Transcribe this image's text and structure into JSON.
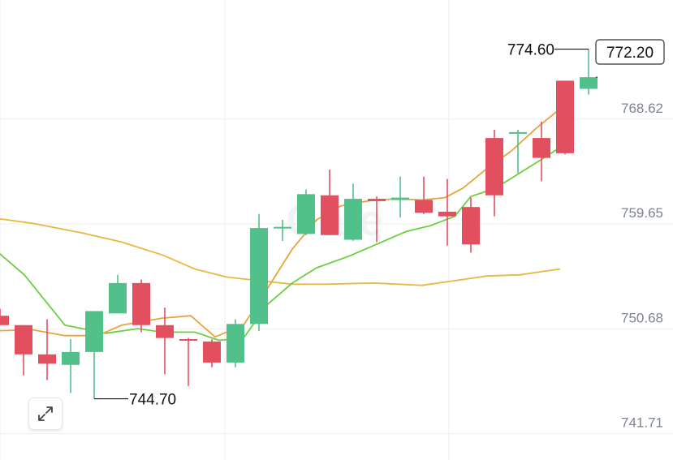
{
  "chart_data": {
    "type": "candlestick",
    "y_ticks": [
      "768.62",
      "759.65",
      "750.68",
      "741.71"
    ],
    "y_tick_values": [
      768.62,
      759.65,
      750.68,
      741.71
    ],
    "ylim": [
      740.3,
      778.8
    ],
    "grid": true,
    "colors": {
      "up": "#52c08a",
      "down": "#e2505f",
      "ma_orange": "#e8a33b",
      "ma_green": "#6bcf3f",
      "ma_yellow": "#e9b740",
      "grid": "#eeeeee"
    },
    "candles": [
      {
        "o": 751.8,
        "h": 752.4,
        "l": 751.0,
        "c": 751.0
      },
      {
        "o": 751.0,
        "h": 751.0,
        "l": 746.7,
        "c": 748.5
      },
      {
        "o": 748.5,
        "h": 751.5,
        "l": 746.3,
        "c": 747.7
      },
      {
        "o": 747.6,
        "h": 749.8,
        "l": 745.2,
        "c": 748.7
      },
      {
        "o": 748.7,
        "h": 752.2,
        "l": 744.7,
        "c": 752.2
      },
      {
        "o": 752.0,
        "h": 755.3,
        "l": 752.0,
        "c": 754.6
      },
      {
        "o": 754.6,
        "h": 754.9,
        "l": 750.4,
        "c": 751.0
      },
      {
        "o": 751.0,
        "h": 752.5,
        "l": 746.8,
        "c": 749.9
      },
      {
        "o": 749.8,
        "h": 749.9,
        "l": 745.8,
        "c": 749.7
      },
      {
        "o": 749.6,
        "h": 749.8,
        "l": 747.4,
        "c": 747.8
      },
      {
        "o": 747.8,
        "h": 751.5,
        "l": 747.4,
        "c": 751.1
      },
      {
        "o": 751.1,
        "h": 760.5,
        "l": 750.5,
        "c": 759.3
      },
      {
        "o": 759.3,
        "h": 760.0,
        "l": 758.2,
        "c": 759.4
      },
      {
        "o": 758.8,
        "h": 762.6,
        "l": 758.7,
        "c": 762.2
      },
      {
        "o": 762.1,
        "h": 764.3,
        "l": 758.7,
        "c": 758.7
      },
      {
        "o": 758.3,
        "h": 763.1,
        "l": 758.2,
        "c": 761.8
      },
      {
        "o": 761.8,
        "h": 762.0,
        "l": 758.1,
        "c": 761.6
      },
      {
        "o": 761.7,
        "h": 763.7,
        "l": 760.2,
        "c": 761.9
      },
      {
        "o": 761.7,
        "h": 763.7,
        "l": 760.5,
        "c": 760.6
      },
      {
        "o": 760.7,
        "h": 763.5,
        "l": 757.8,
        "c": 760.3
      },
      {
        "o": 761.1,
        "h": 761.9,
        "l": 757.2,
        "c": 757.9
      },
      {
        "o": 767.0,
        "h": 767.7,
        "l": 760.3,
        "c": 762.1
      },
      {
        "o": 767.5,
        "h": 767.7,
        "l": 764.0,
        "c": 767.5
      },
      {
        "o": 767.0,
        "h": 768.4,
        "l": 763.3,
        "c": 765.3
      },
      {
        "o": 771.9,
        "h": 771.9,
        "l": 765.6,
        "c": 765.7
      },
      {
        "o": 771.2,
        "h": 774.6,
        "l": 770.7,
        "c": 772.2
      }
    ],
    "ma_orange": [
      [
        -12,
        750.5
      ],
      [
        40,
        750.6
      ],
      [
        80,
        750.1
      ],
      [
        120,
        750.1
      ],
      [
        150,
        751.0
      ],
      [
        200,
        751.6
      ],
      [
        235,
        751.8
      ],
      [
        265,
        750.0
      ],
      [
        300,
        751.0
      ],
      [
        330,
        754.2
      ],
      [
        360,
        757.5
      ],
      [
        390,
        760.0
      ],
      [
        420,
        761.2
      ],
      [
        460,
        761.7
      ],
      [
        490,
        761.8
      ],
      [
        520,
        761.7
      ],
      [
        548,
        761.9
      ],
      [
        570,
        762.7
      ],
      [
        600,
        764.4
      ],
      [
        630,
        765.9
      ],
      [
        660,
        767.8
      ],
      [
        690,
        769.5
      ]
    ],
    "ma_green": [
      [
        -12,
        757.8
      ],
      [
        30,
        755.3
      ],
      [
        80,
        751.0
      ],
      [
        130,
        750.3
      ],
      [
        170,
        750.7
      ],
      [
        200,
        750.4
      ],
      [
        240,
        750.4
      ],
      [
        270,
        749.7
      ],
      [
        300,
        749.9
      ],
      [
        330,
        752.8
      ],
      [
        360,
        754.6
      ],
      [
        390,
        755.9
      ],
      [
        430,
        756.9
      ],
      [
        470,
        758.1
      ],
      [
        500,
        759.0
      ],
      [
        530,
        759.5
      ],
      [
        560,
        760.3
      ],
      [
        580,
        762.0
      ],
      [
        610,
        762.7
      ],
      [
        640,
        764.0
      ],
      [
        670,
        765.3
      ],
      [
        690,
        766.2
      ]
    ],
    "ma_yellow": [
      [
        -12,
        760.2
      ],
      [
        40,
        759.7
      ],
      [
        100,
        758.9
      ],
      [
        150,
        758.1
      ],
      [
        200,
        757.0
      ],
      [
        240,
        755.8
      ],
      [
        280,
        755.1
      ],
      [
        320,
        754.8
      ],
      [
        360,
        754.5
      ],
      [
        400,
        754.5
      ],
      [
        460,
        754.6
      ],
      [
        520,
        754.4
      ],
      [
        560,
        754.8
      ],
      [
        600,
        755.2
      ],
      [
        640,
        755.3
      ],
      [
        670,
        755.6
      ],
      [
        690,
        755.8
      ]
    ],
    "last_price": "772.20",
    "high_label": "774.60",
    "low_label": "744.70",
    "watermark": "Gate"
  }
}
